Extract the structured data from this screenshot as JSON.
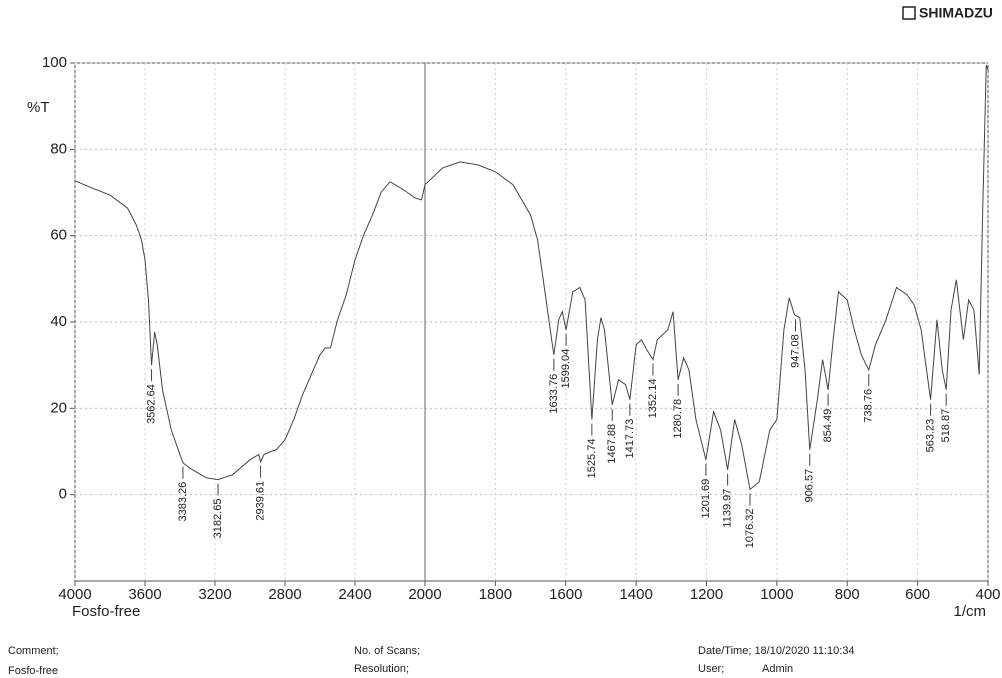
{
  "brand": "SHIMADZU",
  "chart_data": {
    "type": "line",
    "ylabel": "%T",
    "xlabel": "1/cm",
    "sample_label": "Fosfo-free",
    "xlim": [
      4000,
      400
    ],
    "x_break": 2000,
    "xticks": [
      4000,
      3600,
      3200,
      2800,
      2400,
      2000,
      1800,
      1600,
      1400,
      1200,
      1000,
      800,
      600,
      400
    ],
    "ylim": [
      -20,
      100
    ],
    "yticks": [
      0,
      20,
      40,
      60,
      80,
      100
    ],
    "grid": true,
    "series": [
      {
        "color": "#444444",
        "x": [
          4000,
          3900,
          3800,
          3700,
          3650,
          3620,
          3600,
          3580,
          3562.64,
          3545,
          3530,
          3500,
          3450,
          3400,
          3383.26,
          3350,
          3300,
          3250,
          3182.65,
          3100,
          3000,
          2950,
          2939.61,
          2920,
          2880,
          2850,
          2800,
          2750,
          2700,
          2650,
          2600,
          2570,
          2540,
          2500,
          2450,
          2400,
          2350,
          2300,
          2250,
          2200,
          2150,
          2100,
          2060,
          2020,
          2000,
          1950,
          1900,
          1850,
          1800,
          1750,
          1700,
          1680,
          1660,
          1640,
          1633.76,
          1620,
          1610,
          1599.04,
          1580,
          1560,
          1545,
          1525.74,
          1510,
          1500,
          1490,
          1467.88,
          1450,
          1430,
          1417.73,
          1400,
          1385,
          1370,
          1352.14,
          1340,
          1310,
          1295,
          1280.78,
          1265,
          1250,
          1230,
          1201.69,
          1180,
          1160,
          1139.97,
          1120,
          1100,
          1076.32,
          1050,
          1020,
          1000,
          980,
          965,
          950,
          935,
          920,
          906.57,
          885,
          870,
          854.49,
          840,
          825,
          800,
          780,
          760,
          738.76,
          720,
          690,
          660,
          630,
          610,
          590,
          563.23,
          545,
          530,
          518.87,
          505,
          490,
          470,
          455,
          440,
          425,
          415,
          405,
          400
        ],
        "values": [
          72.7,
          71,
          69.4,
          66.4,
          62.5,
          59,
          54.4,
          45,
          30,
          37.7,
          34.7,
          24.3,
          15,
          9.3,
          7.4,
          6.3,
          5.1,
          3.9,
          3.5,
          4.6,
          8.1,
          9.3,
          7.6,
          9.3,
          10,
          10.4,
          12.7,
          17.4,
          23.1,
          27.8,
          32.4,
          34,
          34,
          40.5,
          46.3,
          54.4,
          60.2,
          64.8,
          70.1,
          72.5,
          71.3,
          70,
          68.8,
          68.3,
          71.8,
          75.7,
          77.1,
          76.4,
          74.8,
          71.8,
          64.8,
          59,
          47.5,
          35.9,
          32.4,
          40.5,
          42.4,
          38.2,
          47,
          48,
          45.1,
          17.4,
          35.9,
          41,
          38.2,
          20.8,
          26.6,
          25.5,
          22,
          34.7,
          35.9,
          33.6,
          31.3,
          35.9,
          38.2,
          42.4,
          26.6,
          31.7,
          28.9,
          17.4,
          8.1,
          19.2,
          15,
          5.8,
          17.4,
          11.6,
          1.2,
          3,
          15,
          17.4,
          38.2,
          45.6,
          41.7,
          41,
          28.9,
          10.4,
          22,
          31.3,
          24.3,
          35.9,
          47,
          45.1,
          38.2,
          32.4,
          28.9,
          34.7,
          40.5,
          48,
          46.3,
          44,
          38.2,
          22,
          40.5,
          28.9,
          24.3,
          42.8,
          49.8,
          35.9,
          45.1,
          42.8,
          27.8,
          66,
          99.5,
          98.4
        ]
      }
    ],
    "peaks": [
      3562.64,
      3383.26,
      3182.65,
      2939.61,
      1633.76,
      1599.04,
      1525.74,
      1467.88,
      1417.73,
      1352.14,
      1280.78,
      1201.69,
      1139.97,
      1076.32,
      947.08,
      906.57,
      854.49,
      738.76,
      563.23,
      518.87
    ]
  },
  "footer": {
    "comment": "Comment;",
    "comment_value": "Fosfo-free",
    "scans": "No. of Scans;",
    "resolution": "Resolution;",
    "datetime": "Date/Time; 18/10/2020 11:10:34",
    "user": "User;",
    "user_value": "Admin"
  }
}
